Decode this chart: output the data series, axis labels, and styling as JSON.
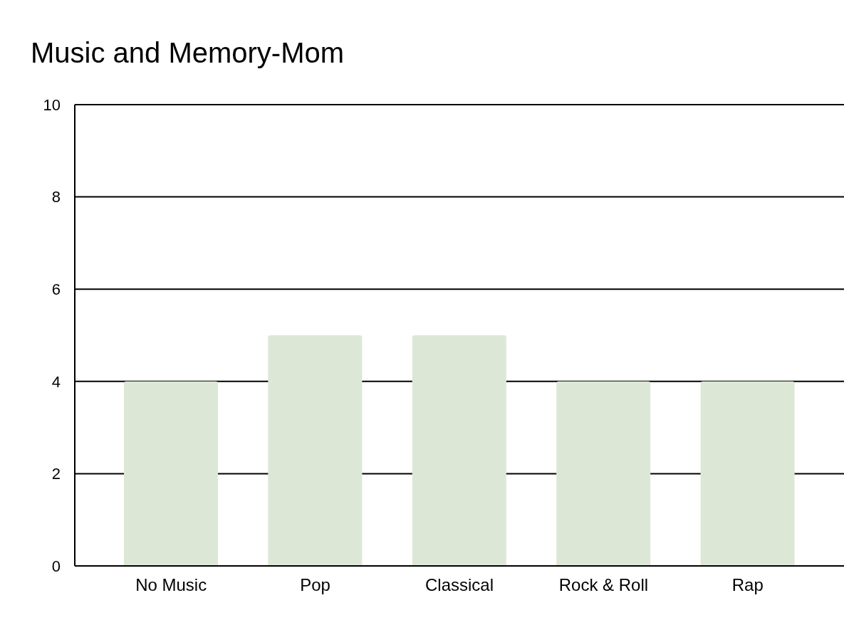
{
  "chart_data": {
    "type": "bar",
    "title": "Music and Memory-Mom",
    "categories": [
      "No Music",
      "Pop",
      "Classical",
      "Rock & Roll",
      "Rap"
    ],
    "values": [
      4,
      5,
      5,
      4,
      4
    ],
    "color": "#dce8d5",
    "ylim": [
      0,
      10
    ],
    "yticks": [
      0,
      2,
      4,
      6,
      8,
      10
    ],
    "grid": "y"
  }
}
